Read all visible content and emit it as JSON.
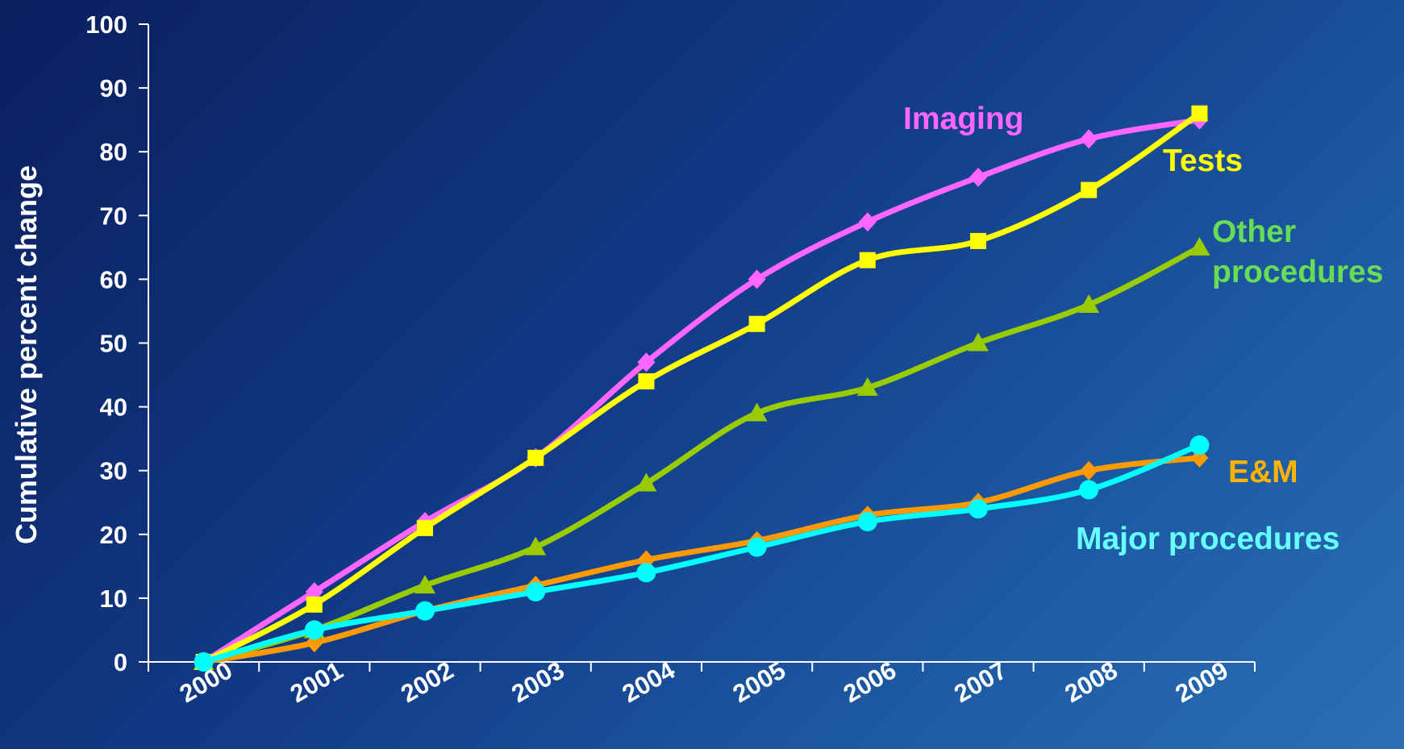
{
  "chart_data": {
    "type": "line",
    "title": "",
    "xlabel": "",
    "ylabel": "Cumulative percent change",
    "categories": [
      "2000",
      "2001",
      "2002",
      "2003",
      "2004",
      "2005",
      "2006",
      "2007",
      "2008",
      "2009"
    ],
    "y_ticks": [
      "0",
      "10",
      "20",
      "30",
      "40",
      "50",
      "60",
      "70",
      "80",
      "90",
      "100"
    ],
    "ylim": [
      0,
      100
    ],
    "grid": false,
    "legend": "direct labels next to lines",
    "series": [
      {
        "name": "Imaging",
        "color": "#ff66ff",
        "marker": "diamond",
        "values": [
          0,
          11,
          22,
          32,
          47,
          60,
          69,
          76,
          82,
          85
        ]
      },
      {
        "name": "Tests",
        "color": "#ffff00",
        "marker": "square",
        "values": [
          0,
          9,
          21,
          32,
          44,
          53,
          63,
          66,
          74,
          86
        ]
      },
      {
        "name": "Other procedures",
        "name_lines": [
          "Other",
          "procedures"
        ],
        "color": "#99cc00",
        "label_color": "#66dd55",
        "marker": "triangle",
        "values": [
          0,
          5,
          12,
          18,
          28,
          39,
          43,
          50,
          56,
          65
        ]
      },
      {
        "name": "E&M",
        "color": "#ff9900",
        "label_color": "#ffb300",
        "marker": "diamond",
        "values": [
          0,
          3,
          8,
          12,
          16,
          19,
          23,
          25,
          30,
          32
        ]
      },
      {
        "name": "Major procedures",
        "color": "#00ffff",
        "label_color": "#66ffff",
        "marker": "circle",
        "values": [
          0,
          5,
          8,
          11,
          14,
          18,
          22,
          24,
          27,
          34
        ]
      }
    ]
  }
}
